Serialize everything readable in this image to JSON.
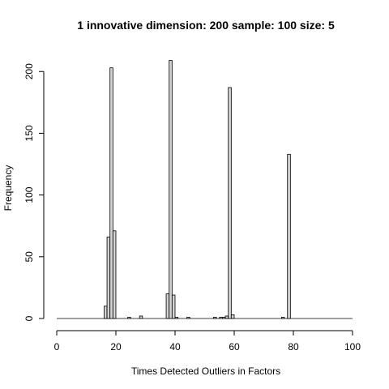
{
  "chart_data": {
    "type": "bar",
    "title": "1 innovative dimension: 200 sample: 100 size: 5",
    "xlabel": "Times Detected Outliers in Factors",
    "ylabel": "Frequency",
    "xlim": [
      0,
      100
    ],
    "ylim": [
      0,
      210
    ],
    "xticks": [
      0,
      20,
      40,
      60,
      80,
      100
    ],
    "yticks": [
      0,
      50,
      100,
      150,
      200
    ],
    "bin_width": 1,
    "x": [
      17,
      18,
      19,
      20,
      25,
      29,
      38,
      39,
      40,
      41,
      45,
      54,
      56,
      57,
      58,
      59,
      60,
      77,
      79
    ],
    "values": [
      10,
      66,
      203,
      71,
      1,
      2,
      20,
      209,
      19,
      1,
      1,
      1,
      1,
      1,
      2,
      187,
      3,
      1,
      133
    ],
    "bar_fill": "#d3d3d3",
    "baseline_range": [
      1,
      100
    ]
  }
}
